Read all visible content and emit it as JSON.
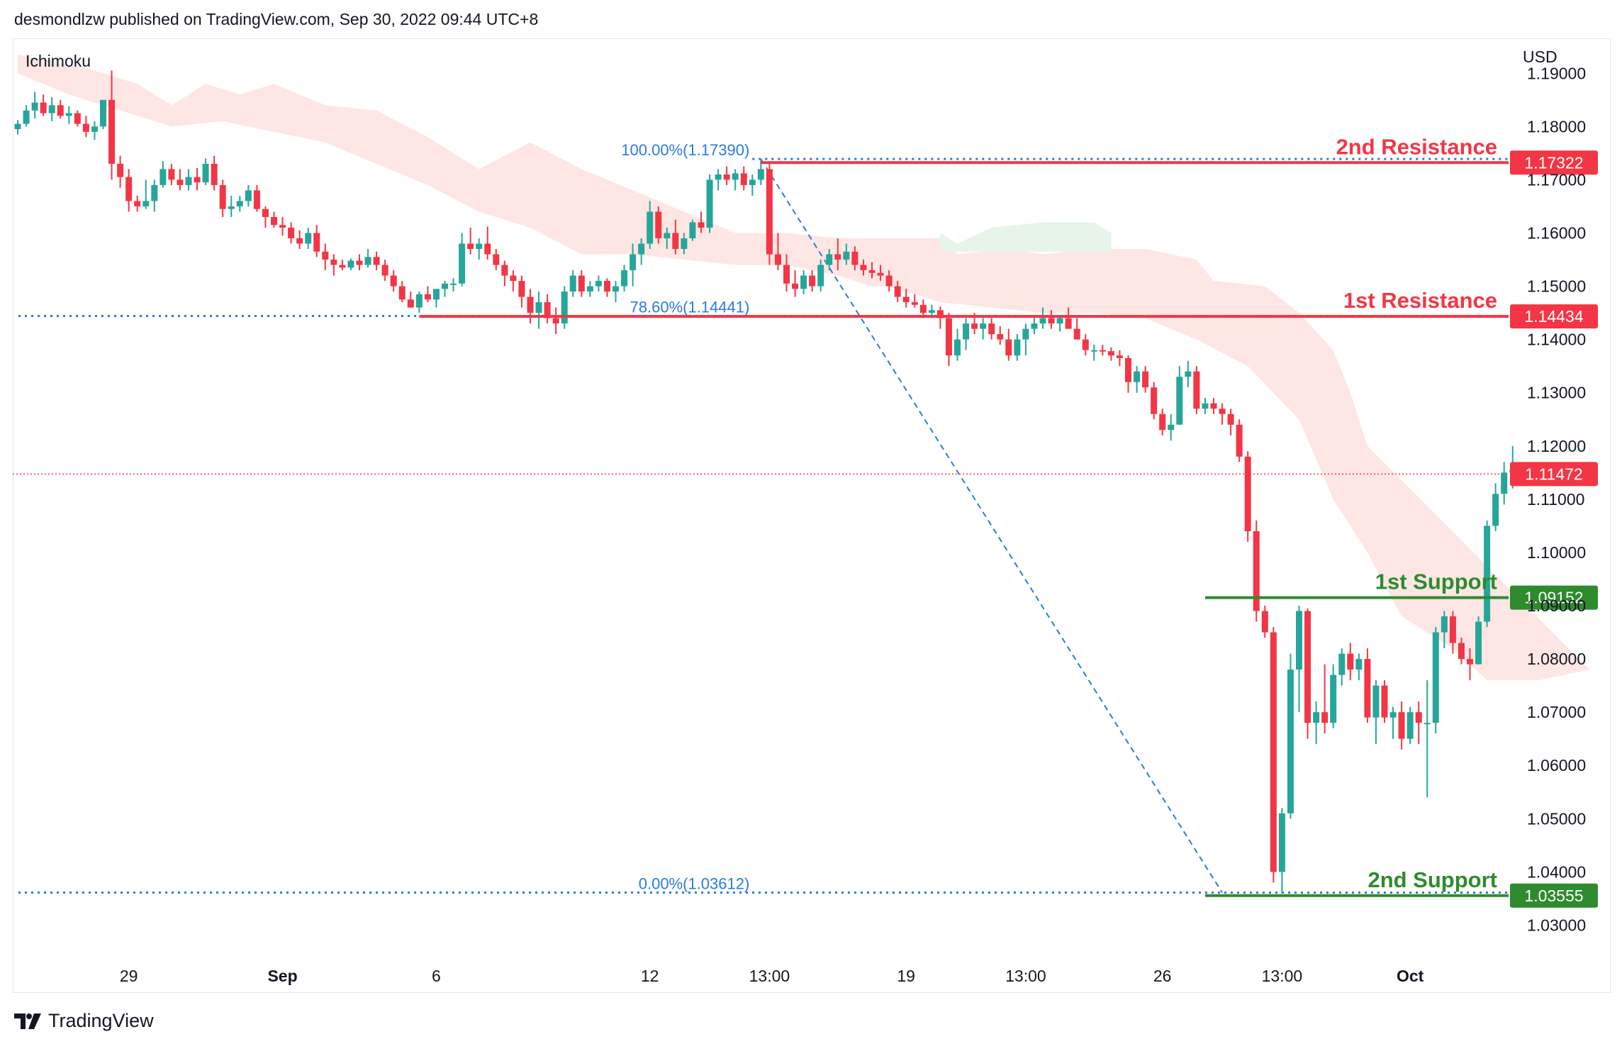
{
  "header": {
    "published_by": "desmondlzw published on TradingView.com, Sep 30, 2022 09:44 UTC+8"
  },
  "footer": {
    "brand": "TradingView"
  },
  "chart_data": {
    "type": "candlestick",
    "indicator": "Ichimoku",
    "currency": "USD",
    "ylim": [
      1.025,
      1.1935
    ],
    "y_ticks": [
      "1.19000",
      "1.18000",
      "1.17000",
      "1.16000",
      "1.15000",
      "1.14000",
      "1.13000",
      "1.12000",
      "1.11000",
      "1.10000",
      "1.09000",
      "1.08000",
      "1.07000",
      "1.06000",
      "1.05000",
      "1.04000",
      "1.03000"
    ],
    "x_ticks": [
      {
        "label": "29",
        "i": 13,
        "bold": false
      },
      {
        "label": "Sep",
        "i": 31,
        "bold": true
      },
      {
        "label": "6",
        "i": 49,
        "bold": false
      },
      {
        "label": "12",
        "i": 74,
        "bold": false
      },
      {
        "label": "13:00",
        "i": 88,
        "bold": false
      },
      {
        "label": "19",
        "i": 104,
        "bold": false
      },
      {
        "label": "13:00",
        "i": 118,
        "bold": false
      },
      {
        "label": "26",
        "i": 134,
        "bold": false
      },
      {
        "label": "13:00",
        "i": 148,
        "bold": false
      },
      {
        "label": "Oct",
        "i": 163,
        "bold": true
      }
    ],
    "n_slots": 177,
    "colors": {
      "up": "#26a69a",
      "down": "#f23645",
      "resistance": "#f23645",
      "support": "#2e8b2e",
      "fib": "#2a7be0",
      "cloud_bear": "#fde6e4",
      "cloud_bull": "#e6f4ea",
      "last_price": "#f23645"
    },
    "candles": [
      [
        1.1795,
        1.1812,
        1.1785,
        1.1805
      ],
      [
        1.1805,
        1.184,
        1.18,
        1.183
      ],
      [
        1.183,
        1.1865,
        1.1815,
        1.1845
      ],
      [
        1.1845,
        1.186,
        1.182,
        1.1825
      ],
      [
        1.1825,
        1.1855,
        1.181,
        1.184
      ],
      [
        1.184,
        1.185,
        1.1815,
        1.182
      ],
      [
        1.182,
        1.1838,
        1.1805,
        1.1825
      ],
      [
        1.1825,
        1.183,
        1.18,
        1.1805
      ],
      [
        1.1805,
        1.182,
        1.178,
        1.179
      ],
      [
        1.179,
        1.181,
        1.1775,
        1.18
      ],
      [
        1.18,
        1.1845,
        1.1795,
        1.185
      ],
      [
        1.185,
        1.1905,
        1.17,
        1.173
      ],
      [
        1.173,
        1.1745,
        1.1685,
        1.1705
      ],
      [
        1.1705,
        1.172,
        1.164,
        1.166
      ],
      [
        1.166,
        1.167,
        1.164,
        1.165
      ],
      [
        1.165,
        1.17,
        1.1645,
        1.166
      ],
      [
        1.166,
        1.17,
        1.164,
        1.169
      ],
      [
        1.169,
        1.1735,
        1.1685,
        1.172
      ],
      [
        1.172,
        1.173,
        1.169,
        1.17
      ],
      [
        1.17,
        1.172,
        1.168,
        1.169
      ],
      [
        1.169,
        1.172,
        1.168,
        1.1705
      ],
      [
        1.1705,
        1.1722,
        1.168,
        1.1695
      ],
      [
        1.1695,
        1.174,
        1.169,
        1.173
      ],
      [
        1.173,
        1.1745,
        1.168,
        1.169
      ],
      [
        1.169,
        1.17,
        1.163,
        1.1645
      ],
      [
        1.1645,
        1.167,
        1.163,
        1.165
      ],
      [
        1.165,
        1.167,
        1.164,
        1.166
      ],
      [
        1.166,
        1.169,
        1.165,
        1.168
      ],
      [
        1.168,
        1.169,
        1.164,
        1.1645
      ],
      [
        1.1645,
        1.165,
        1.161,
        1.163
      ],
      [
        1.163,
        1.164,
        1.161,
        1.1615
      ],
      [
        1.1615,
        1.163,
        1.1595,
        1.161
      ],
      [
        1.161,
        1.162,
        1.158,
        1.159
      ],
      [
        1.159,
        1.1605,
        1.157,
        1.158
      ],
      [
        1.158,
        1.161,
        1.157,
        1.16
      ],
      [
        1.16,
        1.1615,
        1.1555,
        1.1565
      ],
      [
        1.1565,
        1.158,
        1.153,
        1.155
      ],
      [
        1.155,
        1.156,
        1.152,
        1.154
      ],
      [
        1.154,
        1.155,
        1.153,
        1.1535
      ],
      [
        1.1535,
        1.1552,
        1.153,
        1.1548
      ],
      [
        1.1548,
        1.156,
        1.153,
        1.154
      ],
      [
        1.154,
        1.157,
        1.1535,
        1.1555
      ],
      [
        1.1555,
        1.1565,
        1.153,
        1.154
      ],
      [
        1.154,
        1.155,
        1.151,
        1.152
      ],
      [
        1.152,
        1.153,
        1.149,
        1.15
      ],
      [
        1.15,
        1.151,
        1.147,
        1.1475
      ],
      [
        1.1475,
        1.149,
        1.146,
        1.146
      ],
      [
        1.146,
        1.149,
        1.145,
        1.1485
      ],
      [
        1.1485,
        1.15,
        1.147,
        1.1475
      ],
      [
        1.1475,
        1.1495,
        1.146,
        1.1495
      ],
      [
        1.1495,
        1.151,
        1.148,
        1.1505
      ],
      [
        1.1505,
        1.1515,
        1.149,
        1.1505
      ],
      [
        1.1505,
        1.16,
        1.15,
        1.158
      ],
      [
        1.158,
        1.161,
        1.156,
        1.157
      ],
      [
        1.157,
        1.159,
        1.155,
        1.158
      ],
      [
        1.158,
        1.1612,
        1.155,
        1.156
      ],
      [
        1.156,
        1.157,
        1.153,
        1.154
      ],
      [
        1.154,
        1.1548,
        1.15,
        1.152
      ],
      [
        1.152,
        1.153,
        1.149,
        1.151
      ],
      [
        1.151,
        1.152,
        1.146,
        1.148
      ],
      [
        1.148,
        1.1495,
        1.143,
        1.145
      ],
      [
        1.145,
        1.149,
        1.142,
        1.147
      ],
      [
        1.147,
        1.1485,
        1.143,
        1.144
      ],
      [
        1.144,
        1.146,
        1.141,
        1.143
      ],
      [
        1.143,
        1.15,
        1.142,
        1.149
      ],
      [
        1.149,
        1.153,
        1.148,
        1.152
      ],
      [
        1.152,
        1.153,
        1.148,
        1.149
      ],
      [
        1.149,
        1.151,
        1.148,
        1.15
      ],
      [
        1.15,
        1.152,
        1.149,
        1.151
      ],
      [
        1.151,
        1.1515,
        1.148,
        1.149
      ],
      [
        1.149,
        1.151,
        1.147,
        1.15
      ],
      [
        1.15,
        1.154,
        1.149,
        1.153
      ],
      [
        1.153,
        1.158,
        1.15,
        1.156
      ],
      [
        1.156,
        1.159,
        1.154,
        1.158
      ],
      [
        1.158,
        1.166,
        1.157,
        1.164
      ],
      [
        1.164,
        1.165,
        1.158,
        1.159
      ],
      [
        1.159,
        1.161,
        1.157,
        1.16
      ],
      [
        1.16,
        1.1625,
        1.156,
        1.157
      ],
      [
        1.157,
        1.16,
        1.156,
        1.159
      ],
      [
        1.159,
        1.1625,
        1.1585,
        1.162
      ],
      [
        1.162,
        1.164,
        1.16,
        1.161
      ],
      [
        1.161,
        1.171,
        1.16,
        1.17
      ],
      [
        1.17,
        1.172,
        1.168,
        1.171
      ],
      [
        1.171,
        1.1725,
        1.169,
        1.17
      ],
      [
        1.17,
        1.172,
        1.168,
        1.1712
      ],
      [
        1.1712,
        1.1725,
        1.168,
        1.169
      ],
      [
        1.169,
        1.171,
        1.167,
        1.17
      ],
      [
        1.17,
        1.1739,
        1.169,
        1.172
      ],
      [
        1.172,
        1.173,
        1.154,
        1.156
      ],
      [
        1.156,
        1.16,
        1.153,
        1.154
      ],
      [
        1.154,
        1.156,
        1.149,
        1.1505
      ],
      [
        1.1505,
        1.153,
        1.148,
        1.1495
      ],
      [
        1.1495,
        1.153,
        1.1485,
        1.152
      ],
      [
        1.152,
        1.153,
        1.149,
        1.15
      ],
      [
        1.15,
        1.155,
        1.149,
        1.154
      ],
      [
        1.154,
        1.157,
        1.153,
        1.156
      ],
      [
        1.156,
        1.159,
        1.153,
        1.155
      ],
      [
        1.155,
        1.158,
        1.154,
        1.1565
      ],
      [
        1.1565,
        1.1575,
        1.153,
        1.154
      ],
      [
        1.154,
        1.155,
        1.152,
        1.153
      ],
      [
        1.153,
        1.1545,
        1.1515,
        1.1525
      ],
      [
        1.1525,
        1.154,
        1.151,
        1.152
      ],
      [
        1.152,
        1.153,
        1.149,
        1.15
      ],
      [
        1.15,
        1.151,
        1.147,
        1.148
      ],
      [
        1.148,
        1.1495,
        1.146,
        1.147
      ],
      [
        1.147,
        1.1485,
        1.146,
        1.1465
      ],
      [
        1.1465,
        1.1475,
        1.144,
        1.145
      ],
      [
        1.145,
        1.1465,
        1.144,
        1.1455
      ],
      [
        1.1455,
        1.1462,
        1.142,
        1.144
      ],
      [
        1.144,
        1.145,
        1.135,
        1.137
      ],
      [
        1.137,
        1.142,
        1.136,
        1.14
      ],
      [
        1.14,
        1.144,
        1.138,
        1.143
      ],
      [
        1.143,
        1.145,
        1.141,
        1.142
      ],
      [
        1.142,
        1.144,
        1.14,
        1.143
      ],
      [
        1.143,
        1.144,
        1.14,
        1.141
      ],
      [
        1.141,
        1.1425,
        1.139,
        1.14
      ],
      [
        1.14,
        1.142,
        1.136,
        1.137
      ],
      [
        1.137,
        1.141,
        1.136,
        1.14
      ],
      [
        1.14,
        1.143,
        1.137,
        1.142
      ],
      [
        1.142,
        1.1445,
        1.141,
        1.143
      ],
      [
        1.143,
        1.146,
        1.142,
        1.144
      ],
      [
        1.144,
        1.1455,
        1.142,
        1.143
      ],
      [
        1.143,
        1.1445,
        1.1415,
        1.144
      ],
      [
        1.144,
        1.146,
        1.142,
        1.142
      ],
      [
        1.142,
        1.144,
        1.14,
        1.14
      ],
      [
        1.14,
        1.141,
        1.137,
        1.138
      ],
      [
        1.138,
        1.139,
        1.136,
        1.138
      ],
      [
        1.138,
        1.139,
        1.137,
        1.1378
      ],
      [
        1.1378,
        1.1385,
        1.136,
        1.137
      ],
      [
        1.137,
        1.138,
        1.135,
        1.1365
      ],
      [
        1.1365,
        1.137,
        1.13,
        1.132
      ],
      [
        1.132,
        1.135,
        1.13,
        1.134
      ],
      [
        1.134,
        1.135,
        1.13,
        1.131
      ],
      [
        1.131,
        1.132,
        1.125,
        1.126
      ],
      [
        1.126,
        1.127,
        1.122,
        1.123
      ],
      [
        1.123,
        1.126,
        1.121,
        1.124
      ],
      [
        1.124,
        1.135,
        1.124,
        1.133
      ],
      [
        1.133,
        1.136,
        1.131,
        1.134
      ],
      [
        1.134,
        1.135,
        1.126,
        1.127
      ],
      [
        1.127,
        1.129,
        1.126,
        1.128
      ],
      [
        1.128,
        1.129,
        1.126,
        1.127
      ],
      [
        1.127,
        1.128,
        1.124,
        1.126
      ],
      [
        1.126,
        1.127,
        1.122,
        1.124
      ],
      [
        1.124,
        1.125,
        1.117,
        1.118
      ],
      [
        1.118,
        1.119,
        1.102,
        1.104
      ],
      [
        1.104,
        1.106,
        1.087,
        1.089
      ],
      [
        1.089,
        1.09,
        1.084,
        1.085
      ],
      [
        1.085,
        1.086,
        1.038,
        1.04
      ],
      [
        1.04,
        1.052,
        1.036,
        1.051
      ],
      [
        1.051,
        1.081,
        1.05,
        1.078
      ],
      [
        1.078,
        1.09,
        1.07,
        1.089
      ],
      [
        1.089,
        1.0895,
        1.065,
        1.068
      ],
      [
        1.068,
        1.072,
        1.064,
        1.07
      ],
      [
        1.07,
        1.079,
        1.066,
        1.068
      ],
      [
        1.068,
        1.079,
        1.067,
        1.077
      ],
      [
        1.077,
        1.082,
        1.075,
        1.081
      ],
      [
        1.081,
        1.083,
        1.076,
        1.078
      ],
      [
        1.078,
        1.081,
        1.076,
        1.08
      ],
      [
        1.08,
        1.082,
        1.068,
        1.069
      ],
      [
        1.069,
        1.076,
        1.064,
        1.075
      ],
      [
        1.075,
        1.076,
        1.068,
        1.069
      ],
      [
        1.069,
        1.071,
        1.065,
        1.07
      ],
      [
        1.07,
        1.072,
        1.063,
        1.065
      ],
      [
        1.065,
        1.071,
        1.064,
        1.07
      ],
      [
        1.07,
        1.072,
        1.064,
        1.068
      ],
      [
        1.068,
        1.076,
        1.054,
        1.068
      ],
      [
        1.068,
        1.086,
        1.066,
        1.085
      ],
      [
        1.085,
        1.089,
        1.082,
        1.088
      ],
      [
        1.088,
        1.089,
        1.081,
        1.083
      ],
      [
        1.083,
        1.084,
        1.079,
        1.08
      ],
      [
        1.08,
        1.082,
        1.076,
        1.079
      ],
      [
        1.079,
        1.088,
        1.079,
        1.087
      ],
      [
        1.087,
        1.106,
        1.086,
        1.105
      ],
      [
        1.105,
        1.113,
        1.104,
        1.111
      ],
      [
        1.111,
        1.117,
        1.109,
        1.115
      ],
      [
        1.115,
        1.12,
        1.112,
        1.1155
      ],
      [
        1.1155,
        1.117,
        1.114,
        1.1147
      ]
    ],
    "cloud_upper": [
      [
        0,
        1.1935
      ],
      [
        8,
        1.191
      ],
      [
        14,
        1.188
      ],
      [
        18,
        1.184
      ],
      [
        22,
        1.188
      ],
      [
        26,
        1.186
      ],
      [
        30,
        1.188
      ],
      [
        36,
        1.184
      ],
      [
        42,
        1.183
      ],
      [
        48,
        1.178
      ],
      [
        54,
        1.172
      ],
      [
        60,
        1.177
      ],
      [
        66,
        1.172
      ],
      [
        72,
        1.168
      ],
      [
        78,
        1.164
      ],
      [
        84,
        1.16
      ],
      [
        90,
        1.16
      ],
      [
        96,
        1.159
      ],
      [
        102,
        1.159
      ],
      [
        108,
        1.159
      ],
      [
        110,
        1.156
      ],
      [
        116,
        1.157
      ],
      [
        120,
        1.156
      ],
      [
        126,
        1.157
      ],
      [
        132,
        1.157
      ],
      [
        138,
        1.155
      ],
      [
        140,
        1.151
      ],
      [
        146,
        1.15
      ],
      [
        150,
        1.145
      ],
      [
        154,
        1.138
      ],
      [
        156,
        1.13
      ],
      [
        158,
        1.12
      ]
    ],
    "cloud_lower": [
      [
        0,
        1.19
      ],
      [
        6,
        1.186
      ],
      [
        12,
        1.183
      ],
      [
        18,
        1.18
      ],
      [
        24,
        1.181
      ],
      [
        30,
        1.179
      ],
      [
        36,
        1.177
      ],
      [
        42,
        1.173
      ],
      [
        48,
        1.169
      ],
      [
        54,
        1.164
      ],
      [
        60,
        1.161
      ],
      [
        66,
        1.156
      ],
      [
        72,
        1.156
      ],
      [
        78,
        1.155
      ],
      [
        84,
        1.154
      ],
      [
        90,
        1.154
      ],
      [
        96,
        1.152
      ],
      [
        100,
        1.15
      ],
      [
        102,
        1.15
      ],
      [
        108,
        1.147
      ],
      [
        114,
        1.146
      ],
      [
        120,
        1.145
      ],
      [
        126,
        1.145
      ],
      [
        132,
        1.144
      ],
      [
        138,
        1.14
      ],
      [
        144,
        1.135
      ],
      [
        150,
        1.125
      ],
      [
        154,
        1.11
      ],
      [
        158,
        1.1
      ],
      [
        162,
        1.088
      ],
      [
        168,
        1.082
      ],
      [
        172,
        1.076
      ],
      [
        178,
        1.076
      ],
      [
        184,
        1.078
      ]
    ],
    "cloud_green": [
      [
        108,
        1.16
      ],
      [
        110,
        1.158
      ],
      [
        114,
        1.161
      ],
      [
        120,
        1.162
      ],
      [
        126,
        1.162
      ],
      [
        128,
        1.16
      ]
    ],
    "levels": [
      {
        "label": "2nd Resistance",
        "value": 1.17322,
        "value_label": "1.17322",
        "kind": "resistance",
        "from_i": 87
      },
      {
        "label": "1st Resistance",
        "value": 1.14434,
        "value_label": "1.14434",
        "kind": "resistance",
        "from_i": 47
      },
      {
        "label": "1st Support",
        "value": 1.09152,
        "value_label": "1.09152",
        "kind": "support",
        "from_i": 139
      },
      {
        "label": "2nd Support",
        "value": 1.03555,
        "value_label": "1.03555",
        "kind": "support",
        "from_i": 139
      }
    ],
    "fib": [
      {
        "label": "100.00%(1.17390)",
        "value": 1.1739,
        "extends_left": false
      },
      {
        "label": "78.60%(1.14441)",
        "value": 1.14441,
        "extends_left": true
      },
      {
        "label": "0.00%(1.03612)",
        "value": 1.03612,
        "extends_left": true
      }
    ],
    "fib_range_start_i": 86,
    "fib_line": {
      "from": [
        87,
        1.1739
      ],
      "to": [
        141,
        1.03612
      ]
    },
    "last_price": {
      "value": 1.11472,
      "label": "1.11472"
    }
  }
}
